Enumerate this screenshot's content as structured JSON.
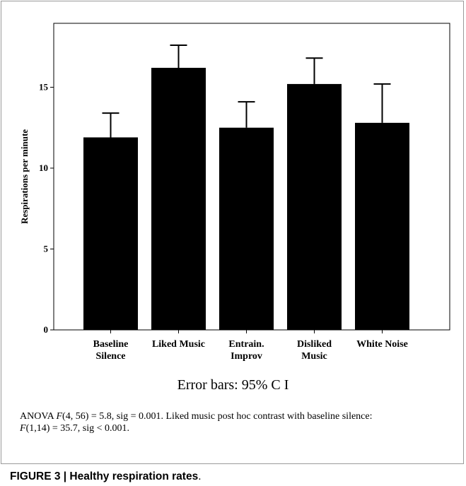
{
  "chart_data": {
    "type": "bar",
    "categories": [
      [
        "Baseline",
        "Silence"
      ],
      [
        "Liked Music"
      ],
      [
        "Entrain.",
        "Improv"
      ],
      [
        "Disliked",
        "Music"
      ],
      [
        "White Noise"
      ]
    ],
    "values": [
      11.9,
      16.2,
      12.5,
      15.2,
      12.8
    ],
    "error_upper": [
      13.4,
      17.6,
      14.1,
      16.8,
      15.2
    ],
    "ylabel": "Respirations per minute",
    "xlabel": "",
    "ylim": [
      0,
      19
    ],
    "yticks": [
      0,
      5,
      10,
      15
    ],
    "ytick_labels": [
      "0",
      "5",
      "10",
      "15"
    ],
    "grid": false,
    "bar_color": "#000000"
  },
  "error_bar_note": "Error bars: 95% C I",
  "stats_note": {
    "l1_pre": "ANOVA ",
    "l1_F": "F",
    "l1_post": "(4, 56) = 5.8, sig = 0.001. Liked music post hoc contrast with baseline silence:",
    "l2_F": "F",
    "l2_post": "(1,14) = 35.7, sig < 0.001."
  },
  "caption": {
    "bold": "FIGURE 3 | Healthy respiration rates",
    "tail": "."
  }
}
